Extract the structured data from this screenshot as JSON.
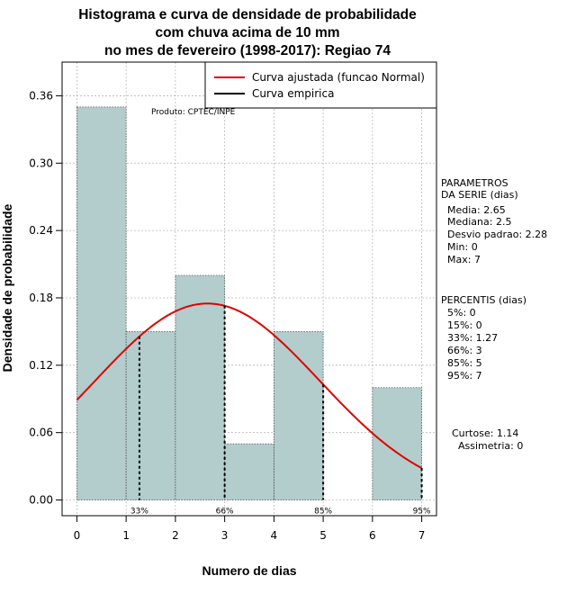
{
  "chart_data": {
    "type": "bar",
    "title_lines": [
      "Histograma e curva de densidade de probabilidade",
      "com chuva acima de 10 mm",
      "no mes de fevereiro (1998-2017): Regiao 74"
    ],
    "xlabel": "Numero de dias",
    "ylabel": "Densidade de probabilidade",
    "xlim": [
      -0.3,
      7.3
    ],
    "ylim": [
      -0.014,
      0.39
    ],
    "x_ticks": [
      0,
      1,
      2,
      3,
      4,
      5,
      6,
      7
    ],
    "y_ticks": [
      0.0,
      0.06,
      0.12,
      0.18,
      0.24,
      0.3,
      0.36
    ],
    "y_tick_labels": [
      "0.00",
      "0.06",
      "0.12",
      "0.18",
      "0.24",
      "0.30",
      "0.36"
    ],
    "bins": [
      {
        "start": 0,
        "end": 1,
        "density": 0.35
      },
      {
        "start": 1,
        "end": 2,
        "density": 0.15
      },
      {
        "start": 2,
        "end": 3,
        "density": 0.2
      },
      {
        "start": 3,
        "end": 4,
        "density": 0.05
      },
      {
        "start": 4,
        "end": 5,
        "density": 0.15
      },
      {
        "start": 5,
        "end": 6,
        "density": 0.0
      },
      {
        "start": 6,
        "end": 7,
        "density": 0.1
      }
    ],
    "fitted_curve": {
      "distribution": "normal",
      "mean": 2.65,
      "sd": 2.28,
      "x_range": [
        0,
        7
      ]
    },
    "percentile_markers": [
      {
        "label": "33%",
        "x": 1.27
      },
      {
        "label": "66%",
        "x": 3
      },
      {
        "label": "85%",
        "x": 5
      },
      {
        "label": "95%",
        "x": 7
      }
    ],
    "legend": {
      "position": "top-right",
      "items": [
        {
          "label": "Curva ajustada (funcao Normal)",
          "color": "#e00000"
        },
        {
          "label": "Curva empirica",
          "color": "#000000"
        }
      ]
    },
    "annotation": "Produto: CPTEC/INPE",
    "colors": {
      "bar_fill": "#b3cccc",
      "curve": "#e00000",
      "grid": "#b8b8b8"
    }
  },
  "side_panel": {
    "params_title": [
      "PARAMETROS",
      "DA SERIE (dias)"
    ],
    "params": [
      "Media: 2.65",
      "Mediana: 2.5",
      "Desvio padrao: 2.28",
      "Min: 0",
      "Max: 7"
    ],
    "percentis_title": "PERCENTIS (dias)",
    "percentis": [
      "5%: 0",
      "15%: 0",
      "33%: 1.27",
      "66%: 3",
      "85%: 5",
      "95%: 7"
    ],
    "curtose": "Curtose: 1.14",
    "assimetria": "Assimetria: 0"
  }
}
